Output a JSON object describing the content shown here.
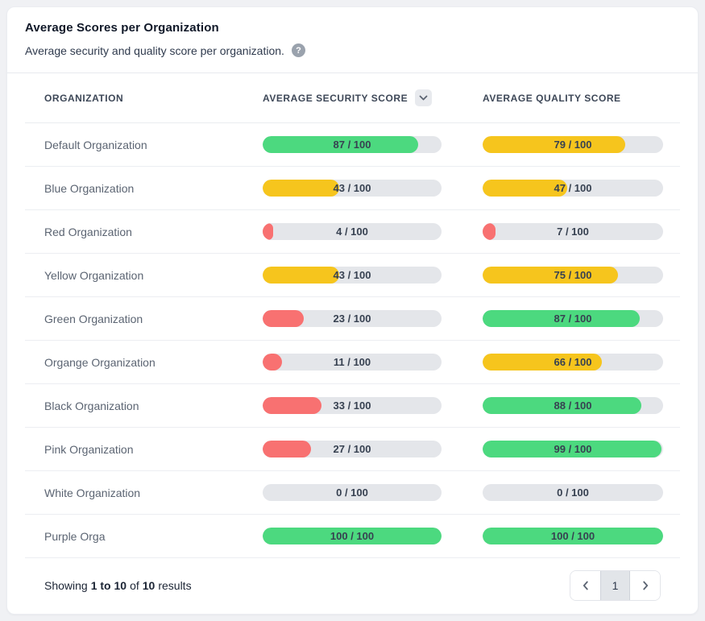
{
  "card": {
    "title": "Average Scores per Organization",
    "subtitle": "Average security and quality score per organization.",
    "help_icon_glyph": "?"
  },
  "table": {
    "columns": [
      "Organization",
      "Average Security Score",
      "Average Quality Score"
    ],
    "sort_icon": "chevron-down-icon",
    "rows": [
      {
        "organization": "Default Organization",
        "security": {
          "value": 87,
          "max": 100,
          "label": "87 / 100",
          "color": "green"
        },
        "quality": {
          "value": 79,
          "max": 100,
          "label": "79 / 100",
          "color": "yellow"
        }
      },
      {
        "organization": "Blue Organization",
        "security": {
          "value": 43,
          "max": 100,
          "label": "43 / 100",
          "color": "yellow"
        },
        "quality": {
          "value": 47,
          "max": 100,
          "label": "47 / 100",
          "color": "yellow"
        }
      },
      {
        "organization": "Red Organization",
        "security": {
          "value": 4,
          "max": 100,
          "label": "4 / 100",
          "color": "red"
        },
        "quality": {
          "value": 7,
          "max": 100,
          "label": "7 / 100",
          "color": "red"
        }
      },
      {
        "organization": "Yellow Organization",
        "security": {
          "value": 43,
          "max": 100,
          "label": "43 / 100",
          "color": "yellow"
        },
        "quality": {
          "value": 75,
          "max": 100,
          "label": "75 / 100",
          "color": "yellow"
        }
      },
      {
        "organization": "Green Organization",
        "security": {
          "value": 23,
          "max": 100,
          "label": "23 / 100",
          "color": "red"
        },
        "quality": {
          "value": 87,
          "max": 100,
          "label": "87 / 100",
          "color": "green"
        }
      },
      {
        "organization": "Organge Organization",
        "security": {
          "value": 11,
          "max": 100,
          "label": "11 / 100",
          "color": "red"
        },
        "quality": {
          "value": 66,
          "max": 100,
          "label": "66 / 100",
          "color": "yellow"
        }
      },
      {
        "organization": "Black Organization",
        "security": {
          "value": 33,
          "max": 100,
          "label": "33 / 100",
          "color": "red"
        },
        "quality": {
          "value": 88,
          "max": 100,
          "label": "88 / 100",
          "color": "green"
        }
      },
      {
        "organization": "Pink Organization",
        "security": {
          "value": 27,
          "max": 100,
          "label": "27 / 100",
          "color": "red"
        },
        "quality": {
          "value": 99,
          "max": 100,
          "label": "99 / 100",
          "color": "green"
        }
      },
      {
        "organization": "White Organization",
        "security": {
          "value": 0,
          "max": 100,
          "label": "0 / 100",
          "color": "none"
        },
        "quality": {
          "value": 0,
          "max": 100,
          "label": "0 / 100",
          "color": "none"
        }
      },
      {
        "organization": "Purple Orga",
        "security": {
          "value": 100,
          "max": 100,
          "label": "100 / 100",
          "color": "green"
        },
        "quality": {
          "value": 100,
          "max": 100,
          "label": "100 / 100",
          "color": "green"
        }
      }
    ]
  },
  "footer": {
    "summary": {
      "prefix": "Showing",
      "range": "1 to 10",
      "of": "of",
      "total": "10",
      "suffix": "results"
    },
    "pagination": {
      "previous_icon": "chevron-left-icon",
      "current_page": "1",
      "next_icon": "chevron-right-icon"
    }
  },
  "colors": {
    "green": "#4cd97f",
    "yellow": "#f6c51d",
    "red": "#f87171",
    "track": "#e4e6ea"
  }
}
